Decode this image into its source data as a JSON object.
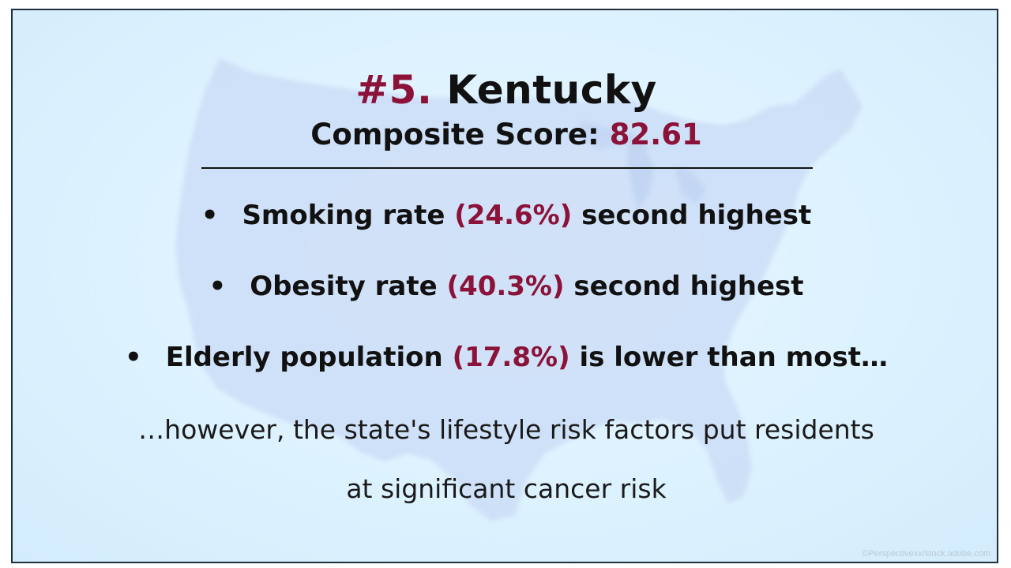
{
  "slide": {
    "title_rank": "#5.",
    "title_state": "Kentucky",
    "subtitle_label": "Composite Score:",
    "subtitle_value": "82.61",
    "bullets": [
      {
        "before": "Smoking rate",
        "value": "(24.6%)",
        "after": "second highest"
      },
      {
        "before": "Obesity rate",
        "value": "(40.3%)",
        "after": "second highest"
      },
      {
        "before": "Elderly population",
        "value": "(17.8%)",
        "after": "is lower than most…"
      }
    ],
    "closing_line1": "…however, the state's lifestyle risk factors put residents",
    "closing_line2": "at significant cancer risk",
    "credit": "©Perspectivexx/stock.adobe.com"
  },
  "colors": {
    "accent": "#8b1238",
    "background": "#ddf2ff",
    "map": "#c6d8f5"
  },
  "icons": {
    "bullet": "bullet-dot",
    "background": "us-map-silhouette"
  }
}
